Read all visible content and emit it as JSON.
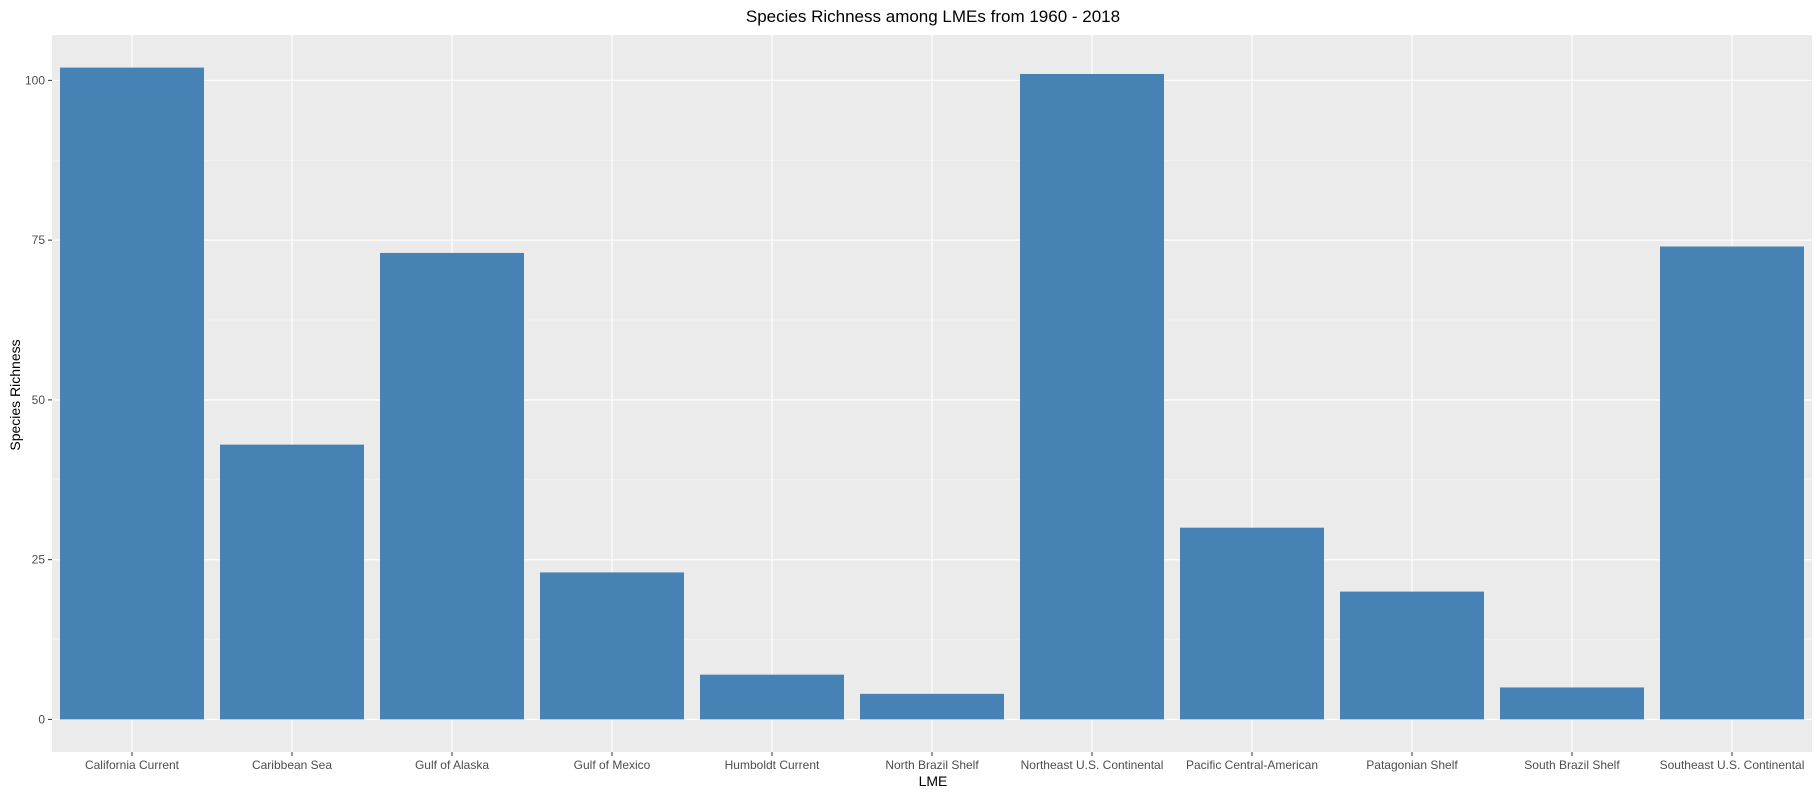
{
  "chart_data": {
    "type": "bar",
    "title": "Species Richness among LMEs from 1960 - 2018",
    "xlabel": "LME",
    "ylabel": "Species Richness",
    "categories": [
      "California Current",
      "Caribbean Sea",
      "Gulf of Alaska",
      "Gulf of Mexico",
      "Humboldt Current",
      "North Brazil Shelf",
      "Northeast U.S. Continental",
      "Pacific Central-American",
      "Patagonian Shelf",
      "South Brazil Shelf",
      "Southeast U.S. Continental"
    ],
    "values": [
      102,
      43,
      73,
      23,
      7,
      4,
      101,
      30,
      20,
      5,
      74
    ],
    "ylim": [
      -5.1,
      107.1
    ],
    "yticks": [
      0,
      25,
      50,
      75,
      100
    ],
    "ytick_labels": [
      "0",
      "25",
      "50",
      "75",
      "100"
    ],
    "grid": true,
    "legend": "none",
    "colors": {
      "bar": "#4682b4",
      "panel": "#ebebeb",
      "grid_major": "#ffffff",
      "grid_minor": "#f5f5f5"
    }
  }
}
